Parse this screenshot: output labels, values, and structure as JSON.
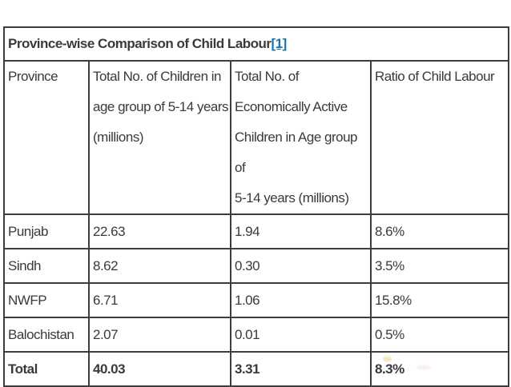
{
  "table": {
    "title": "Province-wise Comparison of Child Labour",
    "title_ref": "[1]",
    "columns": [
      "Province",
      "Total No. of Children in\nage group of 5-14 years\n(millions)",
      "Total No. of\nEconomically Active\nChildren in Age group of\n5-14 years (millions)",
      "Ratio of Child Labour"
    ],
    "rows": [
      {
        "province": "Punjab",
        "children": "22.63",
        "active": "1.94",
        "ratio": "8.6%",
        "bold": false
      },
      {
        "province": "Sindh",
        "children": "8.62",
        "active": "0.30",
        "ratio": "3.5%",
        "bold": false
      },
      {
        "province": "NWFP",
        "children": "6.71",
        "active": "1.06",
        "ratio": "15.8%",
        "bold": false
      },
      {
        "province": "Balochistan",
        "children": "2.07",
        "active": "0.01",
        "ratio": "0.5%",
        "bold": false
      },
      {
        "province": "Total",
        "children": "40.03",
        "active": "3.31",
        "ratio": "8.3%",
        "bold": true
      }
    ]
  },
  "colors": {
    "text": "#3a3a3a",
    "border": "#3d3d3d",
    "link_blue": "#1d71aa"
  }
}
